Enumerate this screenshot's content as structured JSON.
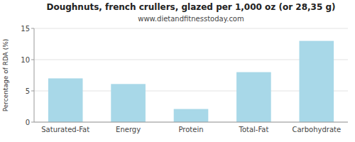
{
  "chart_data": {
    "type": "bar",
    "title": "Doughnuts, french crullers, glazed per 1,000 oz (or 28,35 g)",
    "subtitle": "www.dietandfitnesstoday.com",
    "categories": [
      "Saturated-Fat",
      "Energy",
      "Protein",
      "Total-Fat",
      "Carbohydrate"
    ],
    "values": [
      7.0,
      6.1,
      2.1,
      8.0,
      13.0
    ],
    "color": "#a8d8e8",
    "ylabel": "Percentage of RDA (%)",
    "ylim": [
      0,
      15
    ],
    "yticks": [
      0,
      5,
      10,
      15
    ],
    "grid": true
  }
}
